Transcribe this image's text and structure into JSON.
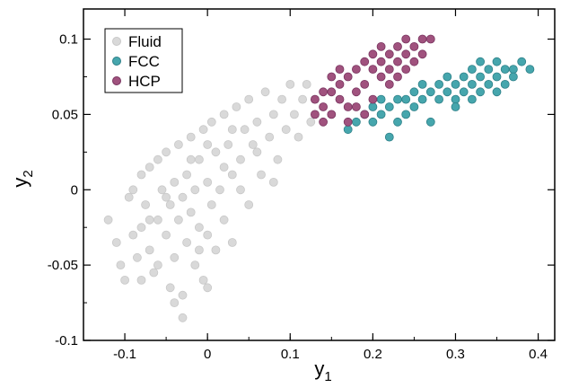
{
  "chart_data": {
    "type": "scatter",
    "title": "",
    "xlabel": "y",
    "xlabel_sub": "1",
    "ylabel": "y",
    "ylabel_sub": "2",
    "xlim": [
      -0.15,
      0.42
    ],
    "ylim": [
      -0.1,
      0.12
    ],
    "xticks": [
      -0.1,
      0,
      0.1,
      0.2,
      0.3,
      0.4
    ],
    "xtick_labels": [
      "-0.1",
      "0",
      "0.1",
      "0.2",
      "0.3",
      "0.4"
    ],
    "yticks": [
      -0.1,
      -0.05,
      0,
      0.05,
      0.1
    ],
    "ytick_labels": [
      "-0.1",
      "-0.05",
      "0",
      "0.05",
      "0.1"
    ],
    "grid": false,
    "legend_position": "top-left",
    "series": [
      {
        "name": "Fluid",
        "color": "#d9d9d9",
        "edge_color": "#c8c8c8",
        "points": [
          [
            -0.12,
            -0.02
          ],
          [
            -0.11,
            -0.035
          ],
          [
            -0.105,
            -0.05
          ],
          [
            -0.1,
            -0.06
          ],
          [
            -0.095,
            -0.005
          ],
          [
            -0.09,
            0.0
          ],
          [
            -0.09,
            -0.03
          ],
          [
            -0.085,
            -0.045
          ],
          [
            -0.08,
            -0.025
          ],
          [
            -0.08,
            0.01
          ],
          [
            -0.075,
            -0.01
          ],
          [
            -0.07,
            -0.04
          ],
          [
            -0.07,
            0.015
          ],
          [
            -0.065,
            -0.055
          ],
          [
            -0.06,
            -0.02
          ],
          [
            -0.06,
            0.02
          ],
          [
            -0.055,
            0.0
          ],
          [
            -0.05,
            -0.03
          ],
          [
            -0.05,
            0.025
          ],
          [
            -0.045,
            -0.065
          ],
          [
            -0.045,
            -0.01
          ],
          [
            -0.04,
            0.005
          ],
          [
            -0.04,
            -0.045
          ],
          [
            -0.035,
            0.03
          ],
          [
            -0.035,
            -0.02
          ],
          [
            -0.03,
            -0.005
          ],
          [
            -0.03,
            -0.07
          ],
          [
            -0.025,
            0.01
          ],
          [
            -0.025,
            -0.035
          ],
          [
            -0.02,
            0.035
          ],
          [
            -0.02,
            -0.015
          ],
          [
            -0.015,
            0.0
          ],
          [
            -0.015,
            -0.05
          ],
          [
            -0.01,
            0.02
          ],
          [
            -0.01,
            -0.025
          ],
          [
            -0.005,
            0.04
          ],
          [
            -0.005,
            -0.06
          ],
          [
            0.0,
            0.005
          ],
          [
            0.0,
            -0.03
          ],
          [
            0.005,
            0.045
          ],
          [
            0.005,
            -0.01
          ],
          [
            0.01,
            0.025
          ],
          [
            0.01,
            -0.04
          ],
          [
            0.015,
            0.0
          ],
          [
            0.02,
            0.05
          ],
          [
            0.02,
            -0.02
          ],
          [
            0.025,
            0.03
          ],
          [
            0.03,
            0.01
          ],
          [
            0.03,
            -0.035
          ],
          [
            0.035,
            0.055
          ],
          [
            0.04,
            0.02
          ],
          [
            0.045,
            0.04
          ],
          [
            0.05,
            -0.01
          ],
          [
            0.05,
            0.06
          ],
          [
            0.055,
            0.03
          ],
          [
            0.06,
            0.045
          ],
          [
            0.065,
            0.01
          ],
          [
            0.07,
            0.065
          ],
          [
            0.075,
            0.035
          ],
          [
            0.08,
            0.05
          ],
          [
            0.085,
            0.02
          ],
          [
            0.09,
            0.06
          ],
          [
            0.095,
            0.04
          ],
          [
            0.1,
            0.07
          ],
          [
            0.105,
            0.05
          ],
          [
            0.11,
            0.035
          ],
          [
            0.115,
            0.06
          ],
          [
            0.12,
            0.07
          ],
          [
            0.125,
            0.045
          ],
          [
            0.13,
            0.06
          ],
          [
            -0.03,
            -0.085
          ],
          [
            -0.04,
            -0.075
          ],
          [
            0.0,
            -0.065
          ],
          [
            -0.06,
            -0.05
          ],
          [
            0.0,
            0.03
          ],
          [
            -0.02,
            0.02
          ],
          [
            -0.05,
            -0.005
          ],
          [
            -0.01,
            -0.04
          ],
          [
            0.03,
            0.04
          ],
          [
            0.06,
            0.025
          ],
          [
            0.08,
            0.005
          ],
          [
            0.04,
            0.0
          ],
          [
            0.02,
            0.015
          ],
          [
            -0.07,
            -0.02
          ],
          [
            -0.08,
            -0.06
          ]
        ]
      },
      {
        "name": "FCC",
        "color": "#46a6ad",
        "edge_color": "#2e8088",
        "points": [
          [
            0.17,
            0.04
          ],
          [
            0.18,
            0.045
          ],
          [
            0.19,
            0.05
          ],
          [
            0.2,
            0.045
          ],
          [
            0.21,
            0.05
          ],
          [
            0.22,
            0.055
          ],
          [
            0.22,
            0.035
          ],
          [
            0.23,
            0.06
          ],
          [
            0.24,
            0.05
          ],
          [
            0.25,
            0.055
          ],
          [
            0.25,
            0.065
          ],
          [
            0.26,
            0.06
          ],
          [
            0.27,
            0.065
          ],
          [
            0.27,
            0.045
          ],
          [
            0.28,
            0.07
          ],
          [
            0.28,
            0.06
          ],
          [
            0.29,
            0.065
          ],
          [
            0.29,
            0.075
          ],
          [
            0.3,
            0.07
          ],
          [
            0.3,
            0.06
          ],
          [
            0.31,
            0.075
          ],
          [
            0.31,
            0.065
          ],
          [
            0.32,
            0.07
          ],
          [
            0.32,
            0.08
          ],
          [
            0.33,
            0.075
          ],
          [
            0.33,
            0.065
          ],
          [
            0.34,
            0.08
          ],
          [
            0.34,
            0.07
          ],
          [
            0.35,
            0.075
          ],
          [
            0.35,
            0.085
          ],
          [
            0.36,
            0.08
          ],
          [
            0.36,
            0.07
          ],
          [
            0.37,
            0.08
          ],
          [
            0.38,
            0.085
          ],
          [
            0.39,
            0.08
          ],
          [
            0.3,
            0.055
          ],
          [
            0.32,
            0.06
          ],
          [
            0.26,
            0.07
          ],
          [
            0.24,
            0.06
          ],
          [
            0.2,
            0.055
          ],
          [
            0.23,
            0.045
          ],
          [
            0.21,
            0.06
          ],
          [
            0.33,
            0.085
          ],
          [
            0.37,
            0.075
          ],
          [
            0.35,
            0.065
          ]
        ]
      },
      {
        "name": "HCP",
        "color": "#a0527e",
        "edge_color": "#7a3560",
        "points": [
          [
            0.13,
            0.05
          ],
          [
            0.13,
            0.06
          ],
          [
            0.14,
            0.045
          ],
          [
            0.14,
            0.055
          ],
          [
            0.15,
            0.065
          ],
          [
            0.15,
            0.05
          ],
          [
            0.16,
            0.07
          ],
          [
            0.16,
            0.06
          ],
          [
            0.17,
            0.075
          ],
          [
            0.17,
            0.055
          ],
          [
            0.18,
            0.08
          ],
          [
            0.18,
            0.065
          ],
          [
            0.19,
            0.085
          ],
          [
            0.19,
            0.07
          ],
          [
            0.2,
            0.08
          ],
          [
            0.2,
            0.09
          ],
          [
            0.21,
            0.085
          ],
          [
            0.21,
            0.075
          ],
          [
            0.22,
            0.09
          ],
          [
            0.22,
            0.08
          ],
          [
            0.23,
            0.095
          ],
          [
            0.23,
            0.085
          ],
          [
            0.24,
            0.09
          ],
          [
            0.24,
            0.1
          ],
          [
            0.25,
            0.095
          ],
          [
            0.25,
            0.085
          ],
          [
            0.26,
            0.1
          ],
          [
            0.26,
            0.09
          ],
          [
            0.27,
            0.1
          ],
          [
            0.2,
            0.06
          ],
          [
            0.19,
            0.05
          ],
          [
            0.18,
            0.055
          ],
          [
            0.22,
            0.07
          ],
          [
            0.17,
            0.045
          ],
          [
            0.16,
            0.08
          ],
          [
            0.15,
            0.075
          ],
          [
            0.24,
            0.08
          ],
          [
            0.21,
            0.095
          ],
          [
            0.23,
            0.075
          ],
          [
            0.14,
            0.065
          ]
        ]
      }
    ]
  }
}
